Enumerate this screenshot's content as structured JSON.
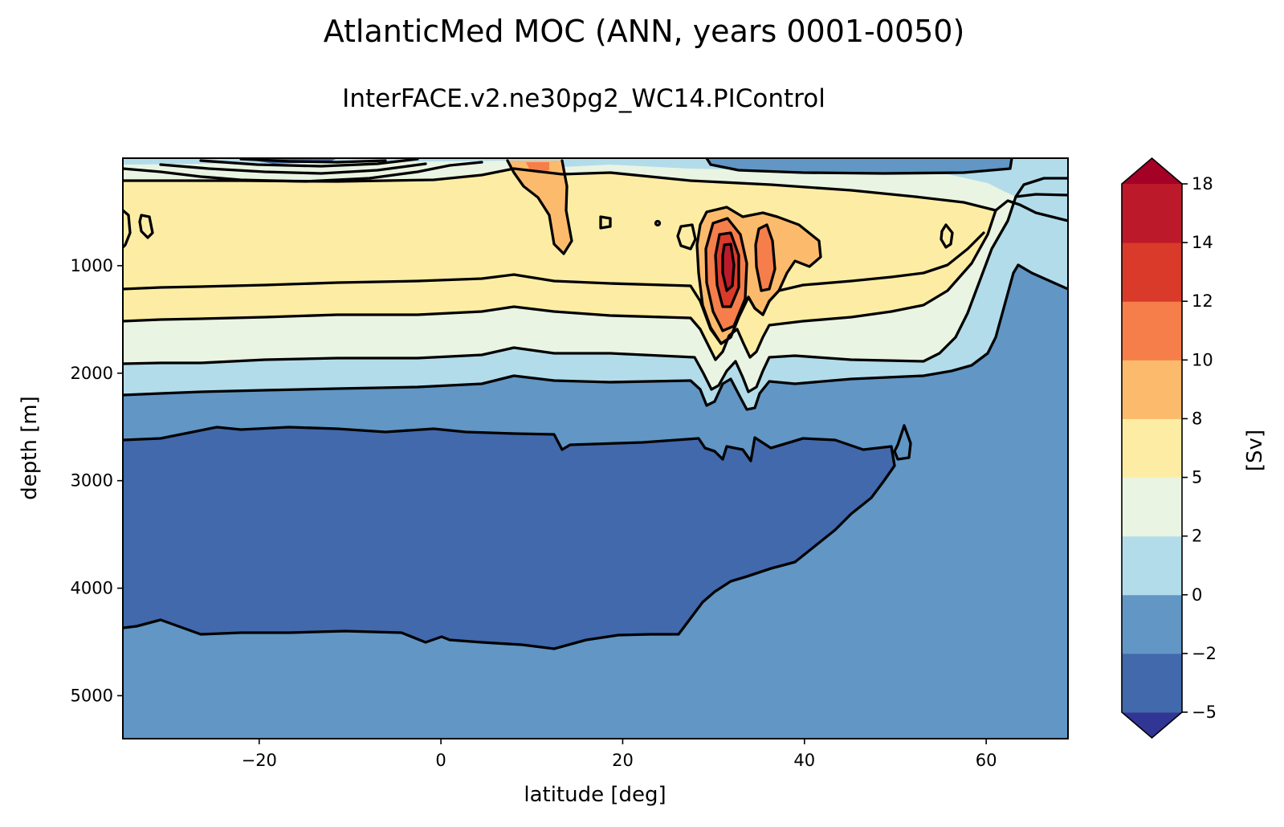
{
  "chart_data": {
    "type": "contour",
    "title": "AtlanticMed MOC (ANN, years 0001-0050)",
    "subtitle": "InterFACE.v2.ne30pg2_WC14.PIControl",
    "xlabel": "latitude [deg]",
    "ylabel": "depth [m]",
    "xlim": [
      -35,
      69
    ],
    "ylim": [
      5400,
      0
    ],
    "y_inverted": true,
    "xticks": [
      -20,
      0,
      20,
      40,
      60
    ],
    "yticks": [
      1000,
      2000,
      3000,
      4000,
      5000
    ],
    "colorbar": {
      "label": "[Sv]",
      "levels": [
        -5,
        -2,
        0,
        2,
        5,
        8,
        10,
        12,
        14,
        18
      ],
      "tick_labels": [
        "−5",
        "−2",
        "0",
        "2",
        "5",
        "8",
        "10",
        "12",
        "14",
        "18"
      ],
      "colors": [
        "#4169ac",
        "#6196c5",
        "#b2dcea",
        "#e9f4e2",
        "#fdeda4",
        "#fcbb6c",
        "#f57e4a",
        "#d93a2a",
        "#bc1a2b"
      ],
      "extend_low_color": "#313695",
      "extend_high_color": "#a50026",
      "extend": "both"
    },
    "features": [
      {
        "name": "upper-cell-max",
        "lat": 32,
        "depth": 1000,
        "value": 14,
        "unit": "Sv"
      },
      {
        "name": "secondary-max",
        "lat": 37,
        "depth": 1000,
        "value": 10,
        "unit": "Sv"
      },
      {
        "name": "lower-cell-min",
        "lat_range": [
          -35,
          52
        ],
        "depth_range": [
          2500,
          4500
        ],
        "value": -2,
        "unit": "Sv"
      }
    ]
  }
}
